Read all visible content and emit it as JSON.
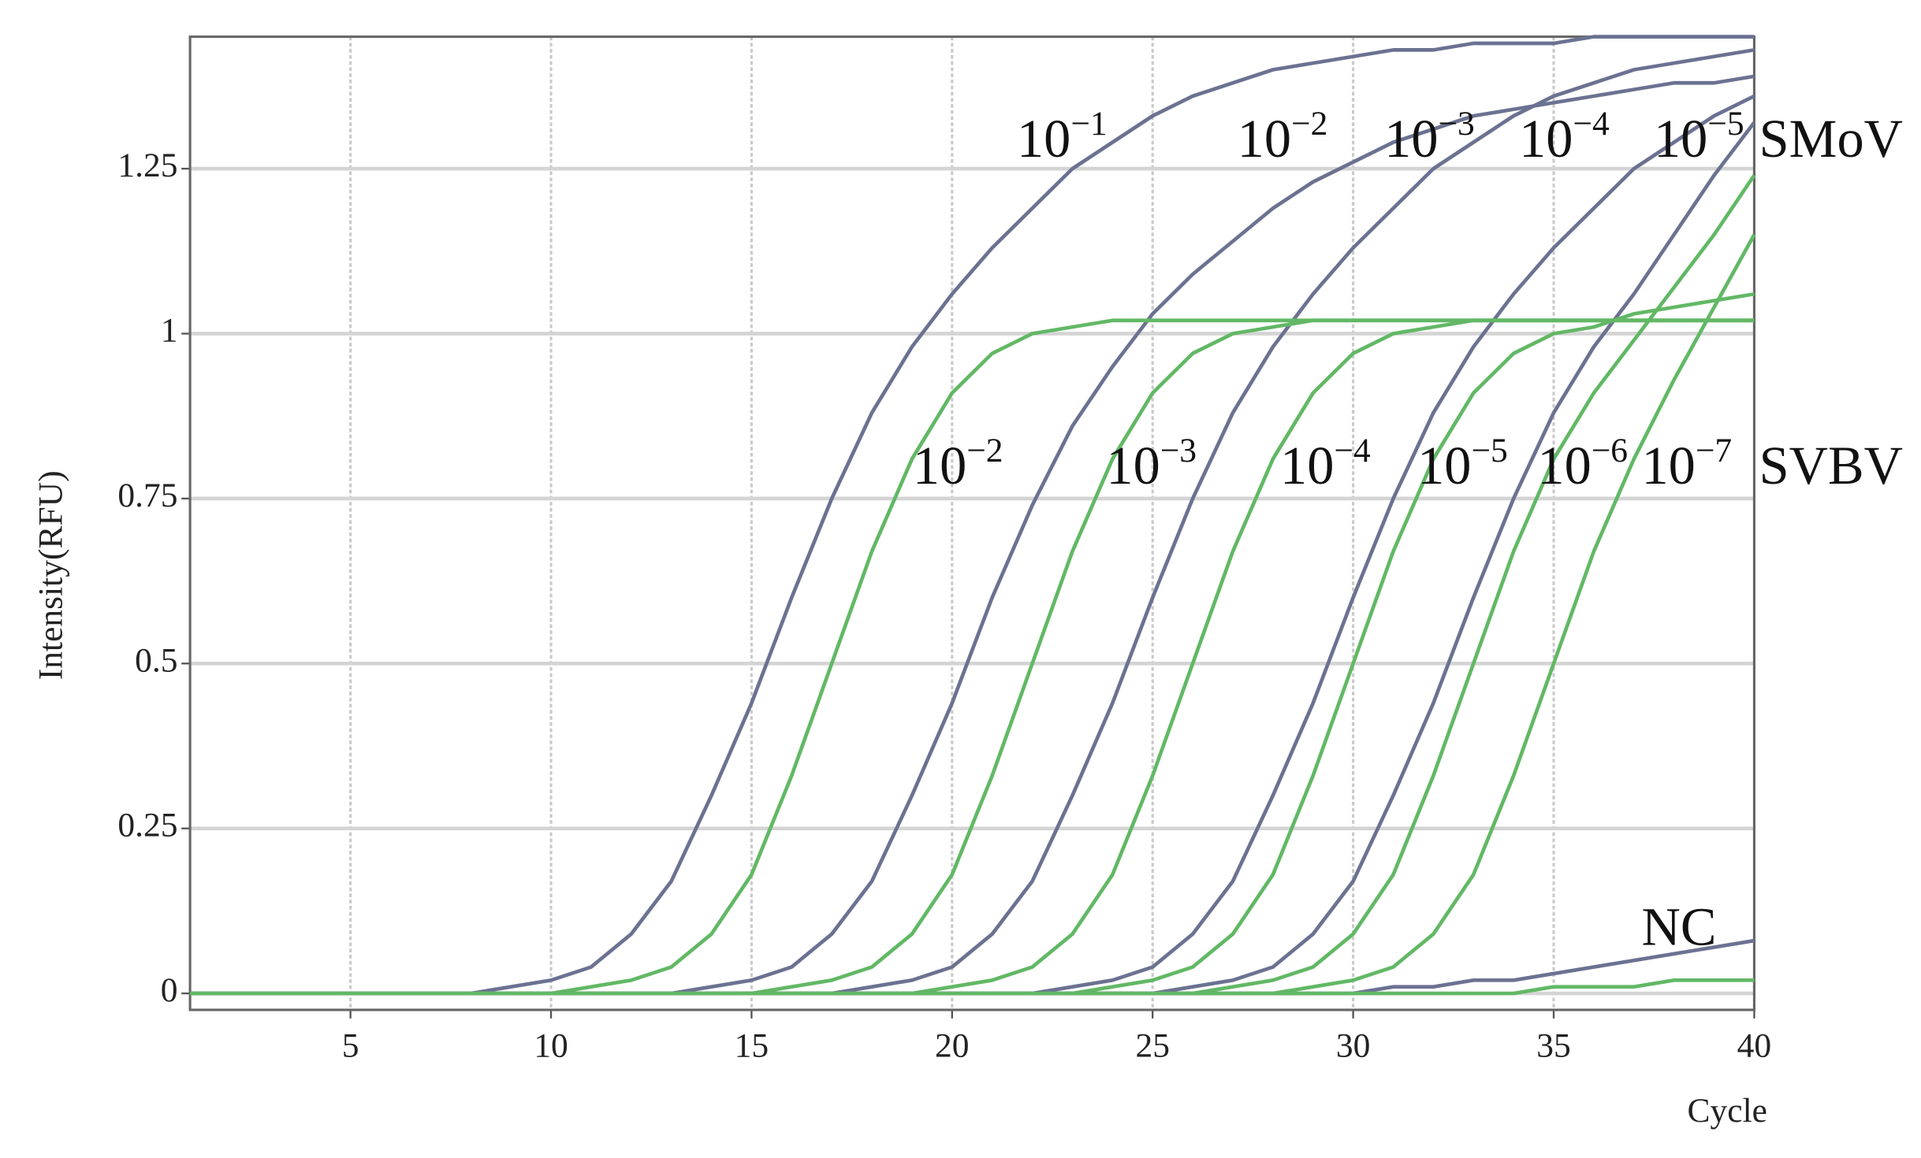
{
  "chart_data": {
    "type": "line",
    "xlabel": "Cycle",
    "ylabel": "Intensity(RFU)",
    "xlim": [
      1,
      40
    ],
    "ylim": [
      -0.025,
      1.45
    ],
    "xticks": [
      5,
      10,
      15,
      20,
      25,
      30,
      35,
      40
    ],
    "yticks": [
      0,
      0.25,
      0.5,
      0.75,
      1,
      1.25
    ],
    "grid": true,
    "x": [
      1,
      2,
      3,
      4,
      5,
      6,
      7,
      8,
      9,
      10,
      11,
      12,
      13,
      14,
      15,
      16,
      17,
      18,
      19,
      20,
      21,
      22,
      23,
      24,
      25,
      26,
      27,
      28,
      29,
      30,
      31,
      32,
      33,
      34,
      35,
      36,
      37,
      38,
      39,
      40
    ],
    "groups": [
      {
        "name": "SMoV",
        "color": "#6b7291",
        "series": [
          {
            "label": {
              "base": "10",
              "exponent": "−1"
            },
            "values": [
              0,
              0,
              0,
              0,
              0,
              0,
              0,
              0,
              0.01,
              0.02,
              0.04,
              0.09,
              0.17,
              0.3,
              0.44,
              0.6,
              0.75,
              0.88,
              0.98,
              1.06,
              1.13,
              1.19,
              1.25,
              1.29,
              1.33,
              1.36,
              1.38,
              1.4,
              1.41,
              1.42,
              1.43,
              1.43,
              1.44,
              1.44,
              1.44,
              1.45,
              1.45,
              1.45,
              1.45,
              1.45
            ]
          },
          {
            "label": {
              "base": "10",
              "exponent": "−2"
            },
            "values": [
              0,
              0,
              0,
              0,
              0,
              0,
              0,
              0,
              0,
              0,
              0,
              0,
              0,
              0.01,
              0.02,
              0.04,
              0.09,
              0.17,
              0.3,
              0.44,
              0.6,
              0.74,
              0.86,
              0.95,
              1.03,
              1.09,
              1.14,
              1.19,
              1.23,
              1.26,
              1.29,
              1.31,
              1.33,
              1.34,
              1.35,
              1.36,
              1.37,
              1.38,
              1.38,
              1.39
            ]
          },
          {
            "label": {
              "base": "10",
              "exponent": "−3"
            },
            "values": [
              0,
              0,
              0,
              0,
              0,
              0,
              0,
              0,
              0,
              0,
              0,
              0,
              0,
              0,
              0,
              0,
              0,
              0.01,
              0.02,
              0.04,
              0.09,
              0.17,
              0.3,
              0.44,
              0.6,
              0.75,
              0.88,
              0.98,
              1.06,
              1.13,
              1.19,
              1.25,
              1.29,
              1.33,
              1.36,
              1.38,
              1.4,
              1.41,
              1.42,
              1.43
            ]
          },
          {
            "label": {
              "base": "10",
              "exponent": "−4"
            },
            "values": [
              0,
              0,
              0,
              0,
              0,
              0,
              0,
              0,
              0,
              0,
              0,
              0,
              0,
              0,
              0,
              0,
              0,
              0,
              0,
              0,
              0,
              0,
              0.01,
              0.02,
              0.04,
              0.09,
              0.17,
              0.3,
              0.44,
              0.6,
              0.75,
              0.88,
              0.98,
              1.06,
              1.13,
              1.19,
              1.25,
              1.29,
              1.33,
              1.36
            ]
          },
          {
            "label": {
              "base": "10",
              "exponent": "−5"
            },
            "values": [
              0,
              0,
              0,
              0,
              0,
              0,
              0,
              0,
              0,
              0,
              0,
              0,
              0,
              0,
              0,
              0,
              0,
              0,
              0,
              0,
              0,
              0,
              0,
              0,
              0,
              0.01,
              0.02,
              0.04,
              0.09,
              0.17,
              0.3,
              0.44,
              0.6,
              0.75,
              0.88,
              0.98,
              1.06,
              1.15,
              1.24,
              1.32
            ]
          }
        ]
      },
      {
        "name": "SVBV",
        "color": "#62b865",
        "series": [
          {
            "label": {
              "base": "10",
              "exponent": "−2"
            },
            "values": [
              0,
              0,
              0,
              0,
              0,
              0,
              0,
              0,
              0,
              0,
              0.01,
              0.02,
              0.04,
              0.09,
              0.18,
              0.33,
              0.5,
              0.67,
              0.81,
              0.91,
              0.97,
              1.0,
              1.01,
              1.02,
              1.02,
              1.02,
              1.02,
              1.02,
              1.02,
              1.02,
              1.02,
              1.02,
              1.02,
              1.02,
              1.02,
              1.02,
              1.02,
              1.02,
              1.02,
              1.02
            ]
          },
          {
            "label": {
              "base": "10",
              "exponent": "−3"
            },
            "values": [
              0,
              0,
              0,
              0,
              0,
              0,
              0,
              0,
              0,
              0,
              0,
              0,
              0,
              0,
              0,
              0.01,
              0.02,
              0.04,
              0.09,
              0.18,
              0.33,
              0.5,
              0.67,
              0.81,
              0.91,
              0.97,
              1.0,
              1.01,
              1.02,
              1.02,
              1.02,
              1.02,
              1.02,
              1.02,
              1.02,
              1.02,
              1.02,
              1.02,
              1.02,
              1.02
            ]
          },
          {
            "label": {
              "base": "10",
              "exponent": "−4"
            },
            "values": [
              0,
              0,
              0,
              0,
              0,
              0,
              0,
              0,
              0,
              0,
              0,
              0,
              0,
              0,
              0,
              0,
              0,
              0,
              0,
              0.01,
              0.02,
              0.04,
              0.09,
              0.18,
              0.33,
              0.5,
              0.67,
              0.81,
              0.91,
              0.97,
              1.0,
              1.01,
              1.02,
              1.02,
              1.02,
              1.02,
              1.02,
              1.02,
              1.02,
              1.02
            ]
          },
          {
            "label": {
              "base": "10",
              "exponent": "−5"
            },
            "values": [
              0,
              0,
              0,
              0,
              0,
              0,
              0,
              0,
              0,
              0,
              0,
              0,
              0,
              0,
              0,
              0,
              0,
              0,
              0,
              0,
              0,
              0,
              0,
              0.01,
              0.02,
              0.04,
              0.09,
              0.18,
              0.33,
              0.5,
              0.67,
              0.81,
              0.91,
              0.97,
              1.0,
              1.01,
              1.03,
              1.04,
              1.05,
              1.06
            ]
          },
          {
            "label": {
              "base": "10",
              "exponent": "−6"
            },
            "values": [
              0,
              0,
              0,
              0,
              0,
              0,
              0,
              0,
              0,
              0,
              0,
              0,
              0,
              0,
              0,
              0,
              0,
              0,
              0,
              0,
              0,
              0,
              0,
              0,
              0,
              0,
              0.01,
              0.02,
              0.04,
              0.09,
              0.18,
              0.33,
              0.5,
              0.67,
              0.81,
              0.91,
              0.99,
              1.07,
              1.15,
              1.24
            ]
          },
          {
            "label": {
              "base": "10",
              "exponent": "−7"
            },
            "values": [
              0,
              0,
              0,
              0,
              0,
              0,
              0,
              0,
              0,
              0,
              0,
              0,
              0,
              0,
              0,
              0,
              0,
              0,
              0,
              0,
              0,
              0,
              0,
              0,
              0,
              0,
              0,
              0,
              0.01,
              0.02,
              0.04,
              0.09,
              0.18,
              0.33,
              0.5,
              0.67,
              0.81,
              0.93,
              1.04,
              1.15
            ]
          }
        ]
      },
      {
        "name": "NC",
        "color": "#6b7291",
        "series": [
          {
            "values": [
              0,
              0,
              0,
              0,
              0,
              0,
              0,
              0,
              0,
              0,
              0,
              0,
              0,
              0,
              0,
              0,
              0,
              0,
              0,
              0,
              0,
              0,
              0,
              0,
              0,
              0,
              0,
              0,
              0,
              0,
              0.01,
              0.01,
              0.02,
              0.02,
              0.03,
              0.04,
              0.05,
              0.06,
              0.07,
              0.08
            ]
          },
          {
            "color": "#62b865",
            "values": [
              0,
              0,
              0,
              0,
              0,
              0,
              0,
              0,
              0,
              0,
              0,
              0,
              0,
              0,
              0,
              0,
              0,
              0,
              0,
              0,
              0,
              0,
              0,
              0,
              0,
              0,
              0,
              0,
              0,
              0,
              0,
              0,
              0,
              0,
              0.01,
              0.01,
              0.01,
              0.02,
              0.02,
              0.02
            ]
          }
        ]
      }
    ]
  }
}
